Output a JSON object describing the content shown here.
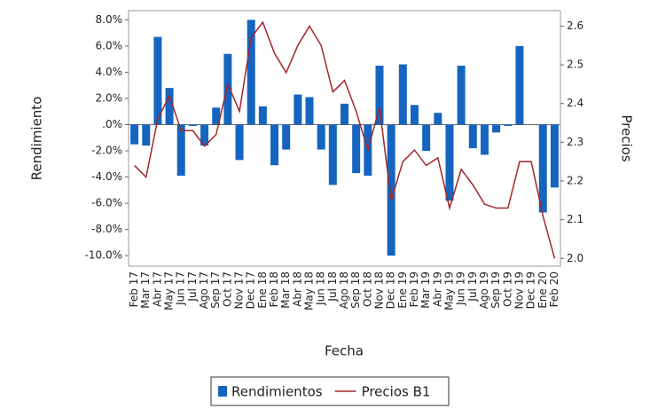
{
  "chart_data": {
    "type": "bar",
    "x_label": "Fecha",
    "y_label": "Rendimiento",
    "y2_label": "Precios",
    "categories": [
      "Feb 17",
      "Mar 17",
      "Abr 17",
      "May 17",
      "Jun 17",
      "Jul 17",
      "Ago 17",
      "Sep 17",
      "Oct 17",
      "Nov 17",
      "Dec 17",
      "Ene 18",
      "Feb 18",
      "Mar 18",
      "Abr 18",
      "May 18",
      "Jun 18",
      "Jul 18",
      "Ago 18",
      "Sep 18",
      "Oct 18",
      "Nov 18",
      "Dec 18",
      "Ene 19",
      "Feb 19",
      "Mar 19",
      "Abr 19",
      "May 19",
      "Jun 19",
      "Jul 19",
      "Ago 19",
      "Sep 19",
      "Oct 19",
      "Nov 19",
      "Dec 19",
      "Ene 20",
      "Feb 20"
    ],
    "series": [
      {
        "name": "Rendimientos",
        "type": "bar",
        "color": "#1565c0",
        "values": [
          -1.5,
          -1.6,
          6.7,
          2.8,
          -3.9,
          -0.1,
          -1.6,
          1.3,
          5.4,
          -2.7,
          8.0,
          1.4,
          -3.1,
          -1.9,
          2.3,
          2.1,
          -1.9,
          -4.6,
          1.6,
          -3.7,
          -3.9,
          4.5,
          -10.0,
          4.6,
          1.5,
          -2.0,
          0.9,
          -5.8,
          4.5,
          -1.8,
          -2.3,
          -0.6,
          -0.1,
          6.0,
          0.0,
          -6.7,
          -4.8
        ]
      },
      {
        "name": "Precios B1",
        "type": "line",
        "axis": "y2",
        "color": "#a3262a",
        "values": [
          2.24,
          2.21,
          2.36,
          2.42,
          2.33,
          2.33,
          2.29,
          2.32,
          2.45,
          2.38,
          2.57,
          2.61,
          2.53,
          2.48,
          2.55,
          2.6,
          2.55,
          2.43,
          2.46,
          2.38,
          2.28,
          2.39,
          2.15,
          2.25,
          2.28,
          2.24,
          2.26,
          2.13,
          2.23,
          2.19,
          2.14,
          2.13,
          2.13,
          2.25,
          2.25,
          2.11,
          2.0
        ]
      }
    ],
    "ylim": [
      -10.8,
      8.7
    ],
    "yticks": [
      {
        "value": 8,
        "label": "8.0%"
      },
      {
        "value": 6,
        "label": "6.0%"
      },
      {
        "value": 4,
        "label": "4.0%"
      },
      {
        "value": 2,
        "label": "2.0%"
      },
      {
        "value": 0,
        "label": ".0%"
      },
      {
        "value": -2,
        "label": "-2.0%"
      },
      {
        "value": -4,
        "label": "-4.0%"
      },
      {
        "value": -6,
        "label": "-6.0%"
      },
      {
        "value": -8,
        "label": "-8.0%"
      },
      {
        "value": -10,
        "label": "-10.0%"
      }
    ],
    "y2lim": [
      1.98,
      2.64
    ],
    "y2ticks": [
      {
        "value": 2,
        "label": "2.0"
      },
      2.1,
      2.2,
      2.3,
      2.4,
      2.5,
      2.6
    ]
  }
}
